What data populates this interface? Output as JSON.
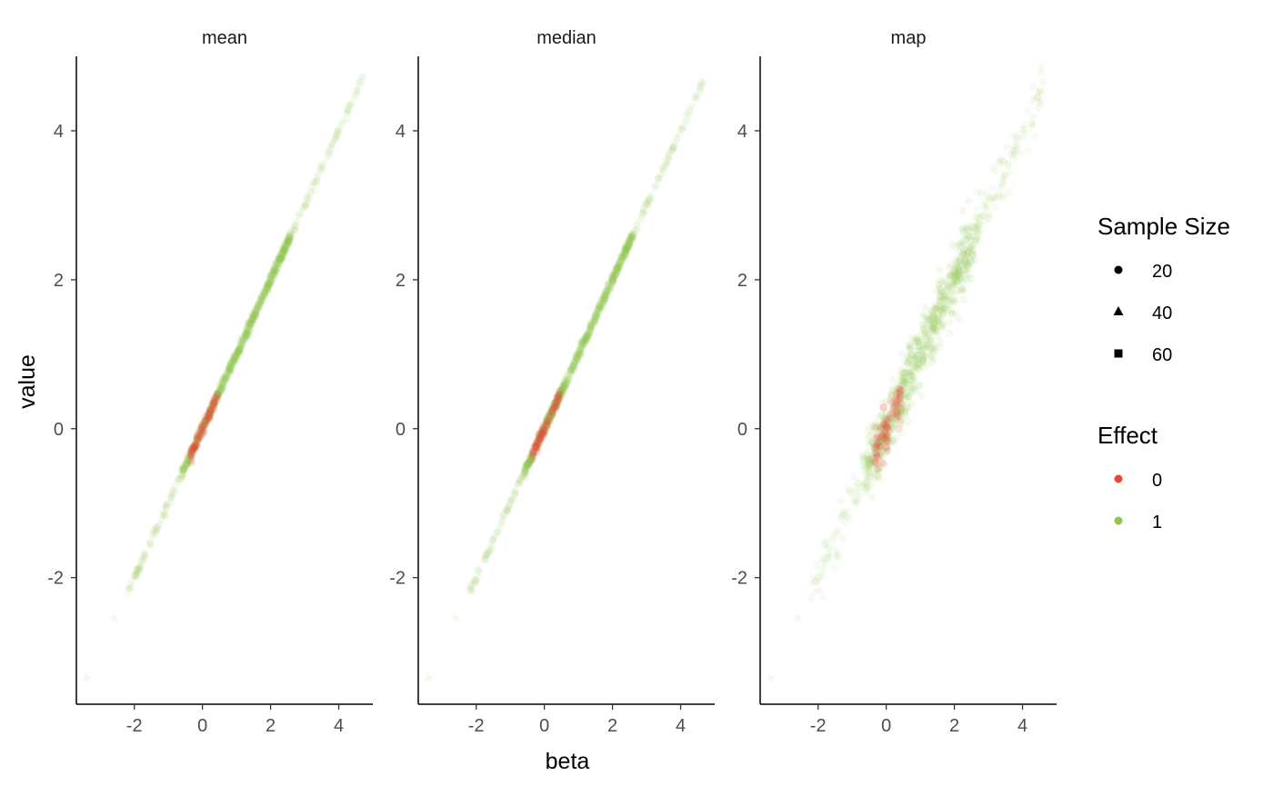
{
  "chart_data": {
    "type": "scatter",
    "xlabel": "beta",
    "ylabel": "value",
    "panels": [
      {
        "name": "mean",
        "xlim": [
          -3.7,
          5.0
        ],
        "ylim": [
          -3.7,
          5.0
        ],
        "x_ticks": [
          -2,
          0,
          2,
          4
        ],
        "x_tick_labels": [
          "-2",
          "0",
          "2",
          "4"
        ],
        "y_ticks": [
          -2,
          0,
          2,
          4
        ],
        "y_tick_labels": [
          "-2",
          "0",
          "2",
          "4"
        ],
        "relation": {
          "slope": 1.0,
          "intercept": 0.0,
          "spread": 0.03,
          "x_range": [
            -3.4,
            4.6
          ]
        }
      },
      {
        "name": "median",
        "xlim": [
          -3.7,
          5.0
        ],
        "ylim": [
          -3.7,
          5.0
        ],
        "x_ticks": [
          -2,
          0,
          2,
          4
        ],
        "x_tick_labels": [
          "-2",
          "0",
          "2",
          "4"
        ],
        "y_ticks": [
          -2,
          0,
          2,
          4
        ],
        "y_tick_labels": [
          "-2",
          "0",
          "2",
          "4"
        ],
        "relation": {
          "slope": 1.0,
          "intercept": 0.0,
          "spread": 0.03,
          "x_range": [
            -3.4,
            4.6
          ]
        }
      },
      {
        "name": "map",
        "xlim": [
          -3.7,
          5.0
        ],
        "ylim": [
          -3.7,
          5.0
        ],
        "x_ticks": [
          -2,
          0,
          2,
          4
        ],
        "x_tick_labels": [
          "-2",
          "0",
          "2",
          "4"
        ],
        "y_ticks": [
          -2,
          0,
          2,
          4
        ],
        "y_tick_labels": [
          "-2",
          "0",
          "2",
          "4"
        ],
        "relation": {
          "slope": 1.0,
          "intercept": 0.0,
          "spread": 0.18,
          "x_range": [
            -3.4,
            4.7
          ]
        }
      }
    ],
    "series": [
      {
        "name": "0",
        "color": "#E8473A",
        "x_range": [
          -0.35,
          0.45
        ],
        "opacity": 0.55
      },
      {
        "name": "1",
        "color": "#8DC651",
        "x_range": [
          -3.4,
          4.7
        ],
        "dense_range": [
          -0.6,
          2.6
        ],
        "opacity": 0.09
      }
    ],
    "legends": [
      {
        "title": "Sample Size",
        "entries": [
          {
            "label": "20",
            "shape": "circle"
          },
          {
            "label": "40",
            "shape": "triangle"
          },
          {
            "label": "60",
            "shape": "square"
          }
        ]
      },
      {
        "title": "Effect",
        "entries": [
          {
            "label": "0",
            "color": "#E8473A"
          },
          {
            "label": "1",
            "color": "#8DC651"
          }
        ]
      }
    ],
    "legend_position": "right",
    "grid": false
  }
}
